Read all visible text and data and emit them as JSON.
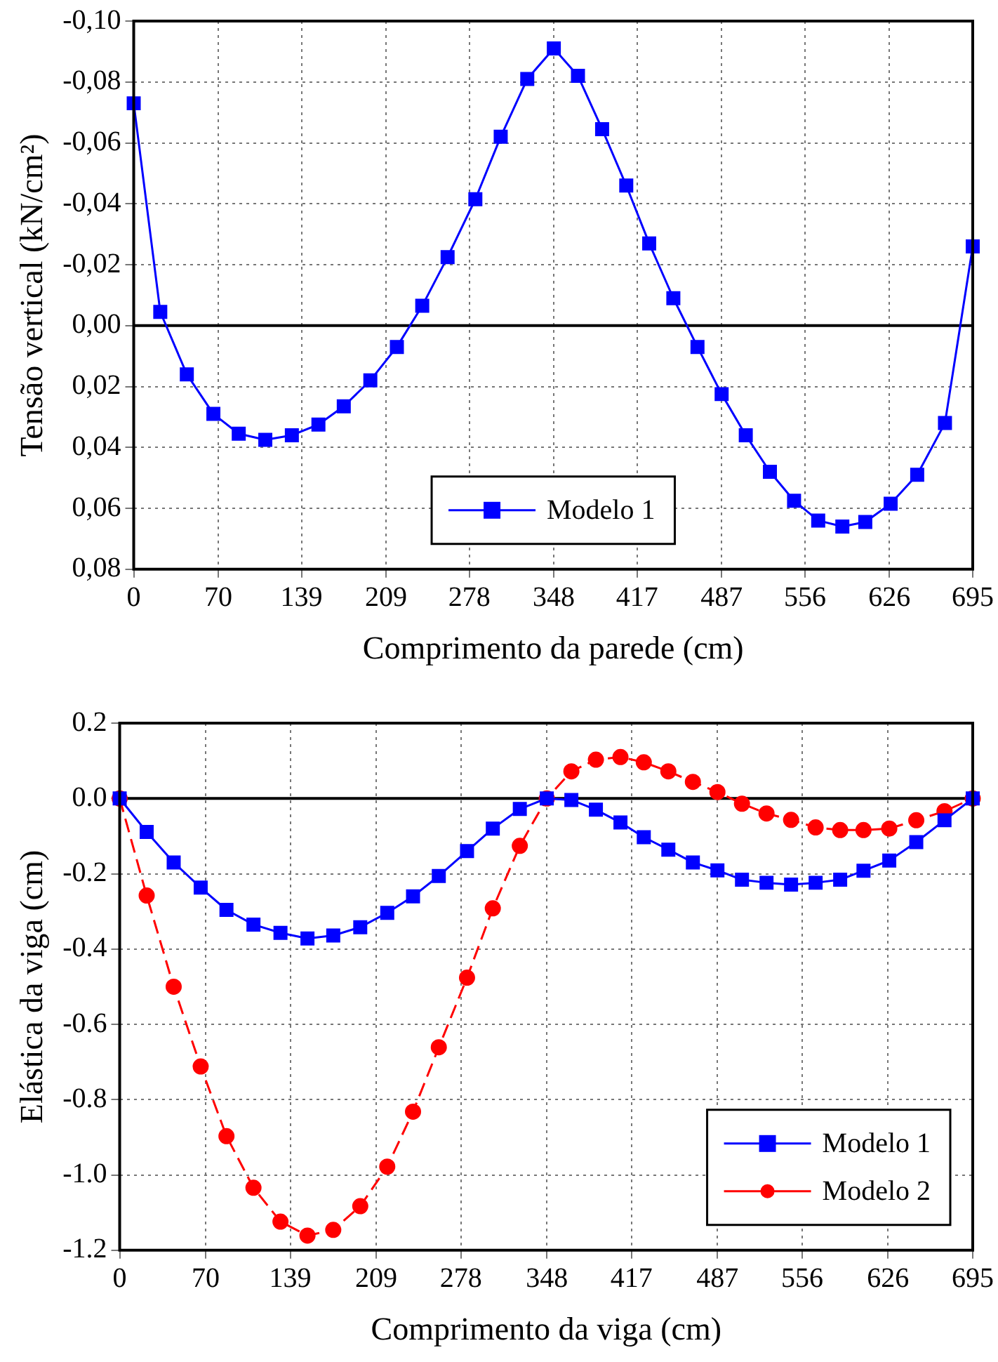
{
  "chart_data": [
    {
      "type": "line",
      "xlabel": "Comprimento da parede (cm)",
      "ylabel": "Tensão vertical (kN/cm²)",
      "x": [
        0,
        22,
        44,
        66,
        87,
        109,
        131,
        153,
        174,
        196,
        218,
        239,
        260,
        283,
        304,
        326,
        348,
        368,
        388,
        408,
        427,
        447,
        467,
        487,
        507,
        527,
        547,
        567,
        587,
        606,
        627,
        649,
        672,
        695
      ],
      "series": [
        {
          "name": "Modelo 1",
          "color": "#0000ff",
          "marker": "square",
          "line_style": "solid",
          "values": [
            -0.073,
            -0.0045,
            0.016,
            0.029,
            0.0355,
            0.0375,
            0.036,
            0.0325,
            0.0265,
            0.018,
            0.007,
            -0.0065,
            -0.0225,
            -0.0415,
            -0.062,
            -0.081,
            -0.091,
            -0.082,
            -0.0645,
            -0.046,
            -0.027,
            -0.009,
            0.007,
            0.0225,
            0.036,
            0.048,
            0.0575,
            0.064,
            0.066,
            0.0645,
            0.0585,
            0.049,
            0.032,
            -0.026
          ]
        }
      ],
      "xlim": [
        0,
        695
      ],
      "xticks": [
        0,
        70,
        139,
        209,
        278,
        348,
        417,
        487,
        556,
        626,
        695
      ],
      "ylim": [
        0.08,
        -0.1
      ],
      "yticks": [
        {
          "value": -0.1,
          "label": "-0,10"
        },
        {
          "value": -0.08,
          "label": "-0,08"
        },
        {
          "value": -0.06,
          "label": "-0,06"
        },
        {
          "value": -0.04,
          "label": "-0,04"
        },
        {
          "value": -0.02,
          "label": "-0,02"
        },
        {
          "value": 0,
          "label": "0,00"
        },
        {
          "value": 0.02,
          "label": "0,02"
        },
        {
          "value": 0.04,
          "label": "0,04"
        },
        {
          "value": 0.06,
          "label": "0,06"
        },
        {
          "value": 0.08,
          "label": "0,08"
        }
      ],
      "ref_lines": [
        {
          "axis": "y",
          "value": 0,
          "color": "#000000"
        }
      ],
      "grid": true,
      "legend": "bottom"
    },
    {
      "type": "line",
      "xlabel": "Comprimento da viga (cm)",
      "ylabel": "Elástica da viga (cm)",
      "x": [
        0,
        22,
        44,
        66,
        87,
        109,
        131,
        153,
        174,
        196,
        218,
        239,
        260,
        283,
        304,
        326,
        348,
        368,
        388,
        408,
        427,
        447,
        467,
        487,
        507,
        527,
        547,
        567,
        587,
        606,
        627,
        649,
        672,
        695
      ],
      "series": [
        {
          "name": "Modelo 1",
          "color": "#0000ff",
          "marker": "square",
          "line_style": "solid",
          "values": [
            0,
            -0.089,
            -0.17,
            -0.237,
            -0.296,
            -0.335,
            -0.357,
            -0.372,
            -0.364,
            -0.342,
            -0.304,
            -0.26,
            -0.206,
            -0.14,
            -0.08,
            -0.028,
            0,
            -0.004,
            -0.03,
            -0.064,
            -0.103,
            -0.136,
            -0.17,
            -0.191,
            -0.216,
            -0.224,
            -0.229,
            -0.224,
            -0.216,
            -0.192,
            -0.165,
            -0.116,
            -0.058,
            0
          ]
        },
        {
          "name": "Modelo 2",
          "color": "#ff0000",
          "marker": "circle",
          "line_style": "dashed",
          "values": [
            0,
            -0.258,
            -0.5,
            -0.712,
            -0.897,
            -1.034,
            -1.124,
            -1.161,
            -1.146,
            -1.083,
            -0.978,
            -0.832,
            -0.661,
            -0.476,
            -0.292,
            -0.126,
            0,
            0.072,
            0.103,
            0.11,
            0.096,
            0.072,
            0.044,
            0.017,
            -0.014,
            -0.04,
            -0.057,
            -0.077,
            -0.084,
            -0.084,
            -0.08,
            -0.058,
            -0.034,
            0
          ]
        }
      ],
      "xlim": [
        0,
        695
      ],
      "xticks": [
        0,
        70,
        139,
        209,
        278,
        348,
        417,
        487,
        556,
        626,
        695
      ],
      "ylim": [
        -1.2,
        0.2
      ],
      "yticks": [
        {
          "value": -1.2,
          "label": "-1.2"
        },
        {
          "value": -1,
          "label": "-1.0"
        },
        {
          "value": -0.8,
          "label": "-0.8"
        },
        {
          "value": -0.6,
          "label": "-0.6"
        },
        {
          "value": -0.4,
          "label": "-0.4"
        },
        {
          "value": -0.2,
          "label": "-0.2"
        },
        {
          "value": 0,
          "label": "0.0"
        },
        {
          "value": 0.2,
          "label": "0.2"
        }
      ],
      "ref_lines": [
        {
          "axis": "y",
          "value": 0,
          "color": "#000000"
        }
      ],
      "grid": true,
      "legend": "bottom right"
    }
  ]
}
